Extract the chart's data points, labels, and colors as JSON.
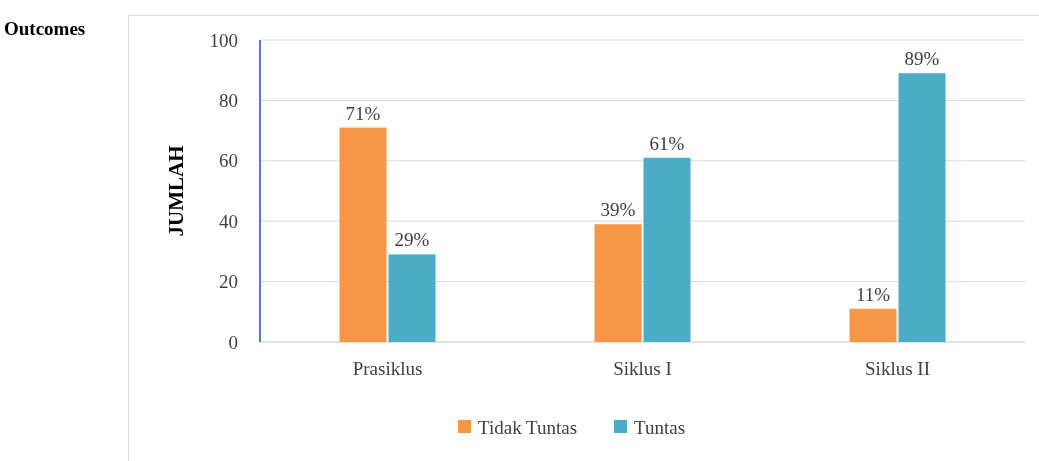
{
  "chart_data": {
    "type": "bar",
    "ylabel": "JUMLAH",
    "annotations": [
      "Outcomes"
    ],
    "categories": [
      "Prasiklus",
      "Siklus I",
      "Siklus II"
    ],
    "series": [
      {
        "name": "Tidak Tuntas",
        "color": "#f79646",
        "values": [
          71,
          39,
          11
        ],
        "value_labels": [
          "71%",
          "39%",
          "11%"
        ]
      },
      {
        "name": "Tuntas",
        "color": "#4bacc6",
        "values": [
          29,
          61,
          89
        ],
        "value_labels": [
          "29%",
          "61%",
          "89%"
        ]
      }
    ],
    "ylim": [
      0,
      100
    ],
    "yticks": [
      0,
      20,
      40,
      60,
      80,
      100
    ],
    "grid": "y",
    "legend": "bottom"
  }
}
